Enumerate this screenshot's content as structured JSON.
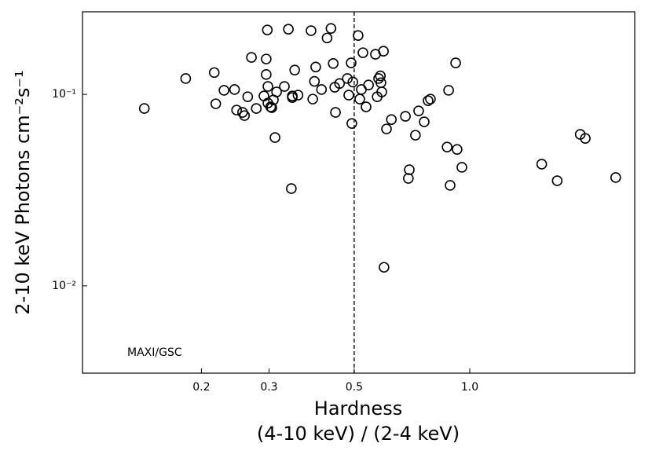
{
  "chart_data": {
    "type": "scatter",
    "x_label": "Hardness",
    "x_label_2": "(4-10 keV) / (2-4 keV)",
    "y_label": "2-10 keV Photons cm⁻²s⁻¹",
    "annotation": "MAXI/GSC",
    "xscale": "log",
    "yscale": "log",
    "color": "#000000",
    "vline_x": 0.5,
    "xlim": [
      0.098,
      2.69
    ],
    "ylim": [
      0.0035,
      0.27
    ],
    "xticks": [
      0.2,
      0.3,
      0.5,
      {
        "value": 1,
        "label": "1.0"
      }
    ],
    "yticks": [
      {
        "value": 0.1,
        "label": "10⁻¹"
      },
      {
        "value": 0.01,
        "label": "10⁻²"
      }
    ],
    "x": [
      0.142,
      0.182,
      0.216,
      0.218,
      0.229,
      0.244,
      0.247,
      0.256,
      0.259,
      0.264,
      0.27,
      0.278,
      0.291,
      0.295,
      0.297,
      0.295,
      0.298,
      0.298,
      0.303,
      0.305,
      0.308,
      0.311,
      0.314,
      0.329,
      0.337,
      0.343,
      0.345,
      0.345,
      0.35,
      0.357,
      0.386,
      0.39,
      0.394,
      0.397,
      0.411,
      0.425,
      0.435,
      0.441,
      0.445,
      0.447,
      0.458,
      0.48,
      0.484,
      0.491,
      0.493,
      0.496,
      0.512,
      0.517,
      0.522,
      0.527,
      0.537,
      0.545,
      0.568,
      0.574,
      0.579,
      0.585,
      0.587,
      0.59,
      0.596,
      0.598,
      0.607,
      0.625,
      0.68,
      0.692,
      0.696,
      0.722,
      0.736,
      0.761,
      0.779,
      0.79,
      0.873,
      0.881,
      0.889,
      0.919,
      0.927,
      0.954,
      1.54,
      1.69,
      1.94,
      2.0,
      2.4
    ],
    "values": [
      0.0844,
      0.121,
      0.13,
      0.0893,
      0.105,
      0.106,
      0.0828,
      0.0805,
      0.0775,
      0.0972,
      0.156,
      0.0844,
      0.0981,
      0.153,
      0.217,
      0.127,
      0.11,
      0.0901,
      0.086,
      0.0852,
      0.0936,
      0.0595,
      0.103,
      0.11,
      0.219,
      0.0322,
      0.0981,
      0.0963,
      0.134,
      0.0991,
      0.215,
      0.0945,
      0.117,
      0.139,
      0.106,
      0.197,
      0.221,
      0.145,
      0.109,
      0.0805,
      0.114,
      0.121,
      0.0991,
      0.146,
      0.0705,
      0.116,
      0.203,
      0.0945,
      0.106,
      0.165,
      0.086,
      0.112,
      0.162,
      0.0972,
      0.121,
      0.125,
      0.115,
      0.103,
      0.168,
      0.0125,
      0.066,
      0.0739,
      0.0768,
      0.0364,
      0.0404,
      0.0612,
      0.082,
      0.0719,
      0.0927,
      0.0945,
      0.0531,
      0.105,
      0.0335,
      0.146,
      0.0516,
      0.0416,
      0.0432,
      0.0354,
      0.0618,
      0.0589,
      0.0368
    ]
  }
}
